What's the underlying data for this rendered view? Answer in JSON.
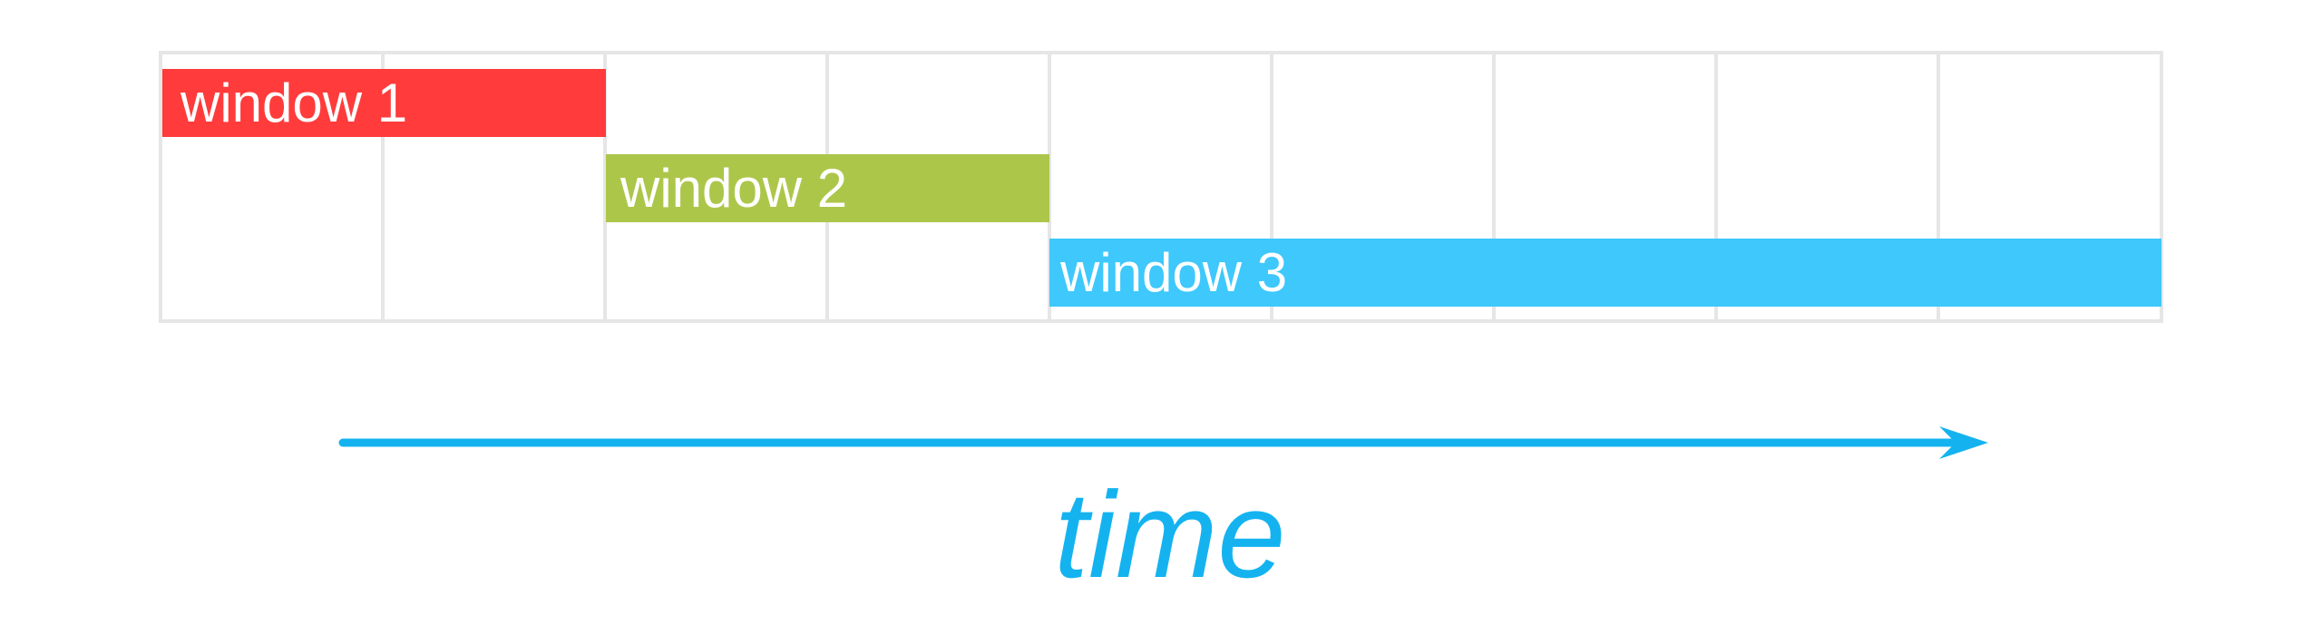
{
  "windows": [
    {
      "label": "window 1",
      "color": "#ff3b3b"
    },
    {
      "label": "window 2",
      "color": "#acc64a"
    },
    {
      "label": "window 3",
      "color": "#3ec8fc"
    }
  ],
  "axis": {
    "label": "time",
    "color": "#14b3f0"
  },
  "grid": {
    "columns": 9,
    "line_color": "#e6e6e6"
  }
}
